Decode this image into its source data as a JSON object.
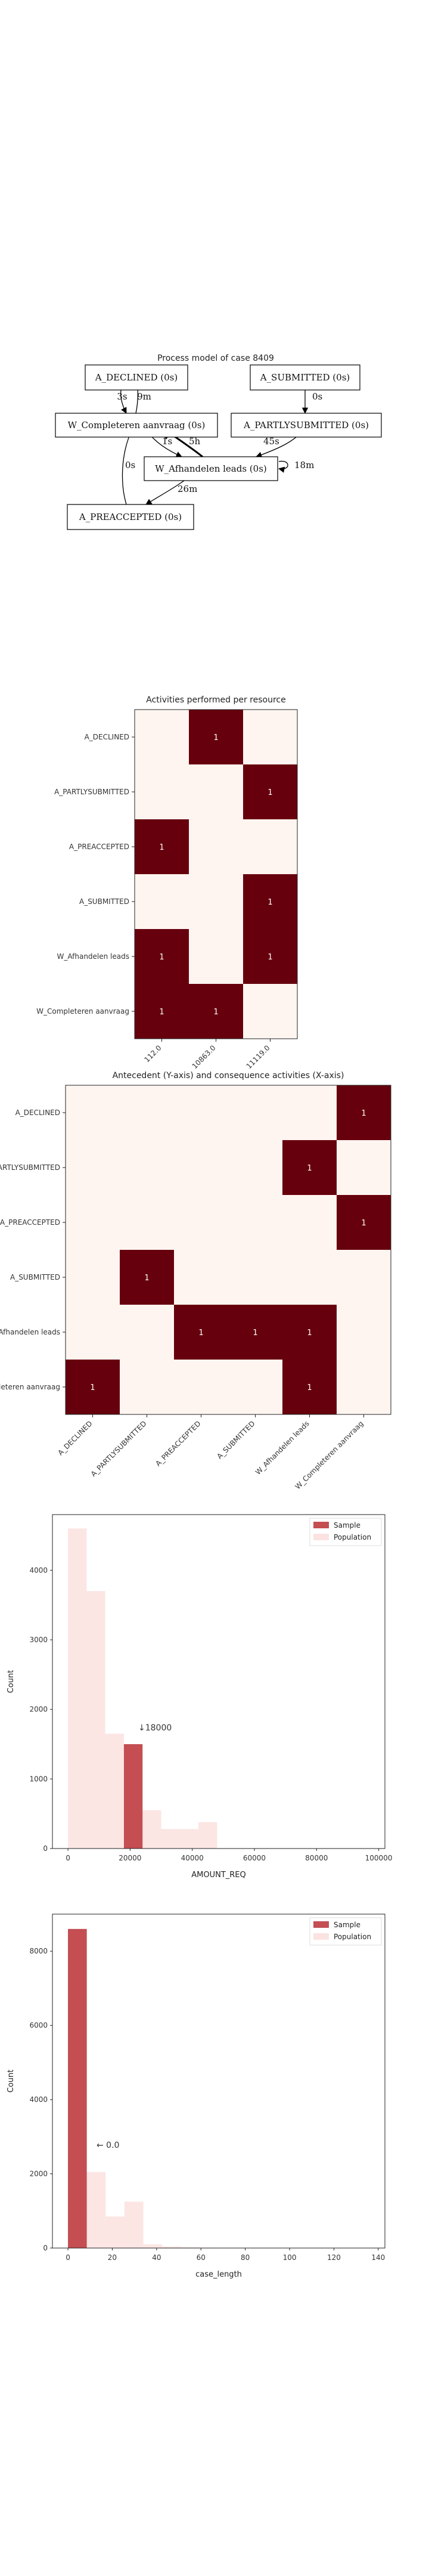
{
  "process_model": {
    "title": "Process model of case 8409",
    "nodes": [
      {
        "id": "declined",
        "label": "A_DECLINED (0s)"
      },
      {
        "id": "submitted",
        "label": "A_SUBMITTED (0s)"
      },
      {
        "id": "completeren",
        "label": "W_Completeren aanvraag (0s)"
      },
      {
        "id": "partly",
        "label": "A_PARTLYSUBMITTED (0s)"
      },
      {
        "id": "afhandelen",
        "label": "W_Afhandelen leads (0s)"
      },
      {
        "id": "preaccepted",
        "label": "A_PREACCEPTED (0s)"
      }
    ],
    "edges": [
      {
        "id": "decl-comp",
        "label": "3s"
      },
      {
        "id": "comp-decl",
        "label": "9m"
      },
      {
        "id": "sub-partly",
        "label": "0s"
      },
      {
        "id": "comp-afh",
        "label": "1s"
      },
      {
        "id": "afh-comp",
        "label": "5h"
      },
      {
        "id": "partly-afh",
        "label": "45s"
      },
      {
        "id": "afh-self",
        "label": "18m"
      },
      {
        "id": "pre-comp",
        "label": "0s"
      },
      {
        "id": "afh-pre",
        "label": "26m"
      }
    ]
  },
  "chart_data": [
    {
      "type": "heatmap",
      "title": "Activities performed per resource",
      "rows": [
        "A_DECLINED",
        "A_PARTLYSUBMITTED",
        "A_PREACCEPTED",
        "A_SUBMITTED",
        "W_Afhandelen leads",
        "W_Completeren aanvraag"
      ],
      "cols": [
        "112.0",
        "10863.0",
        "11119.0"
      ],
      "values": [
        [
          0,
          1,
          0
        ],
        [
          0,
          0,
          1
        ],
        [
          1,
          0,
          0
        ],
        [
          0,
          0,
          1
        ],
        [
          1,
          0,
          1
        ],
        [
          1,
          1,
          0
        ]
      ],
      "colors": {
        "low": "#fff5f0",
        "high": "#67000d"
      }
    },
    {
      "type": "heatmap",
      "title": "Antecedent (Y-axis) and consequence activities (X-axis)",
      "rows": [
        "A_DECLINED",
        "A_PARTLYSUBMITTED",
        "A_PREACCEPTED",
        "A_SUBMITTED",
        "W_Afhandelen leads",
        "W_Completeren aanvraag"
      ],
      "cols": [
        "A_DECLINED",
        "A_PARTLYSUBMITTED",
        "A_PREACCEPTED",
        "A_SUBMITTED",
        "W_Afhandelen leads",
        "W_Completeren aanvraag"
      ],
      "values": [
        [
          0,
          0,
          0,
          0,
          0,
          1
        ],
        [
          0,
          0,
          0,
          0,
          1,
          0
        ],
        [
          0,
          0,
          0,
          0,
          0,
          1
        ],
        [
          0,
          1,
          0,
          0,
          0,
          0
        ],
        [
          0,
          0,
          1,
          1,
          1,
          0
        ],
        [
          1,
          0,
          0,
          0,
          1,
          0
        ]
      ],
      "colors": {
        "low": "#fff5f0",
        "high": "#67000d"
      }
    },
    {
      "type": "bar",
      "xlabel": "AMOUNT_REQ",
      "ylabel": "Count",
      "xlim": [
        -5000,
        102000
      ],
      "ylim": [
        0,
        4800
      ],
      "xticks": [
        "0",
        "20000",
        "40000",
        "60000",
        "80000",
        "100000"
      ],
      "yticks": [
        "0",
        "1000",
        "2000",
        "3000",
        "4000"
      ],
      "bin_edges": [
        0,
        6000,
        12000,
        18000,
        24000,
        30000,
        36000,
        42000,
        48000,
        54000
      ],
      "series": [
        {
          "name": "Sample",
          "color": "#c44e52",
          "values": [
            0,
            0,
            0,
            1500,
            0,
            0,
            0,
            0,
            0
          ]
        },
        {
          "name": "Population",
          "color": "#fbe3e1",
          "values": [
            4600,
            3700,
            1650,
            1350,
            550,
            280,
            280,
            380,
            0
          ]
        }
      ],
      "annotation": "↓18000",
      "legend": "top-right"
    },
    {
      "type": "bar",
      "xlabel": "case_length",
      "ylabel": "Count",
      "xlim": [
        -7,
        143
      ],
      "ylim": [
        0,
        9000
      ],
      "xticks": [
        "0",
        "20",
        "40",
        "60",
        "80",
        "100",
        "120",
        "140"
      ],
      "yticks": [
        "0",
        "2000",
        "4000",
        "6000",
        "8000"
      ],
      "bin_edges": [
        0,
        8.5,
        17,
        25.5,
        34,
        42.5,
        51,
        59.5,
        68
      ],
      "series": [
        {
          "name": "Sample",
          "color": "#c44e52",
          "values": [
            8600,
            0,
            0,
            0,
            0,
            0,
            0,
            0
          ]
        },
        {
          "name": "Population",
          "color": "#fbe3e1",
          "values": [
            8600,
            2050,
            850,
            1250,
            100,
            40,
            20,
            10
          ]
        }
      ],
      "annotation": "← 0.0",
      "legend": "top-right"
    }
  ]
}
